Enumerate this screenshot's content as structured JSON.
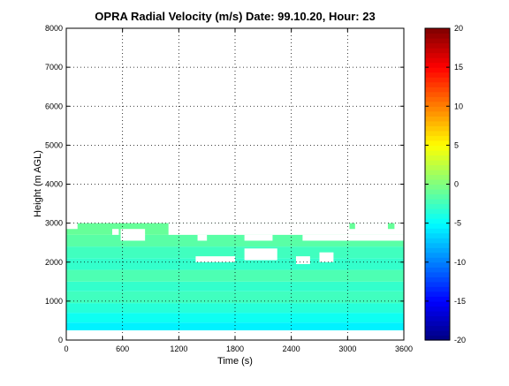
{
  "chart_data": {
    "type": "heatmap",
    "title": "OPRA Radial Velocity (m/s)  Date: 99.10.20, Hour: 23",
    "xlabel": "Time (s)",
    "ylabel": "Height (m AGL)",
    "xlim": [
      0,
      3600
    ],
    "ylim": [
      0,
      8000
    ],
    "xticks": [
      "0",
      "600",
      "1200",
      "1800",
      "2400",
      "3000",
      "3600"
    ],
    "yticks": [
      "0",
      "1000",
      "2000",
      "3000",
      "4000",
      "5000",
      "6000",
      "7000",
      "8000"
    ],
    "grid": true,
    "colormap": "jet",
    "colorbar": {
      "range": [
        -20,
        20
      ],
      "ticks": [
        "-20",
        "-15",
        "-10",
        "-5",
        "0",
        "5",
        "10",
        "15",
        "20"
      ]
    },
    "height_bands": [
      {
        "y0": 250,
        "y1": 450,
        "value": -5.5
      },
      {
        "y0": 450,
        "y1": 700,
        "value": -4.5
      },
      {
        "y0": 700,
        "y1": 950,
        "value": -3.5
      },
      {
        "y0": 950,
        "y1": 1250,
        "value": -2.5
      },
      {
        "y0": 1250,
        "y1": 1500,
        "value": -3.0
      },
      {
        "y0": 1500,
        "y1": 1800,
        "value": -2.0
      },
      {
        "y0": 1800,
        "y1": 2100,
        "value": -3.0
      },
      {
        "y0": 2100,
        "y1": 2400,
        "value": -2.5
      },
      {
        "y0": 2400,
        "y1": 2700,
        "value": -1.5
      },
      {
        "y0": 2700,
        "y1": 3000,
        "value": -1.0
      }
    ],
    "data_extent": {
      "x": [
        0,
        3600
      ],
      "y": [
        250,
        3000
      ]
    },
    "gaps": [
      {
        "x0": 0,
        "x1": 120,
        "y0": 2850,
        "y1": 3000
      },
      {
        "x0": 490,
        "x1": 560,
        "y0": 2700,
        "y1": 2850
      },
      {
        "x0": 580,
        "x1": 840,
        "y0": 2550,
        "y1": 2850
      },
      {
        "x0": 1090,
        "x1": 3600,
        "y0": 2700,
        "y1": 3000
      },
      {
        "x0": 1400,
        "x1": 1500,
        "y0": 2550,
        "y1": 2700
      },
      {
        "x0": 1900,
        "x1": 2200,
        "y0": 2550,
        "y1": 2700
      },
      {
        "x0": 2520,
        "x1": 3600,
        "y0": 2550,
        "y1": 2700
      },
      {
        "x0": 1380,
        "x1": 1800,
        "y0": 2000,
        "y1": 2150
      },
      {
        "x0": 1900,
        "x1": 2250,
        "y0": 2050,
        "y1": 2350
      },
      {
        "x0": 2450,
        "x1": 2600,
        "y0": 1950,
        "y1": 2150
      },
      {
        "x0": 2700,
        "x1": 2850,
        "y0": 2000,
        "y1": 2250
      }
    ],
    "patches": [
      {
        "x0": 3020,
        "x1": 3080,
        "y0": 2850,
        "y1": 3000,
        "value": -1.0
      },
      {
        "x0": 3430,
        "x1": 3500,
        "y0": 2850,
        "y1": 3000,
        "value": -1.0
      }
    ]
  }
}
